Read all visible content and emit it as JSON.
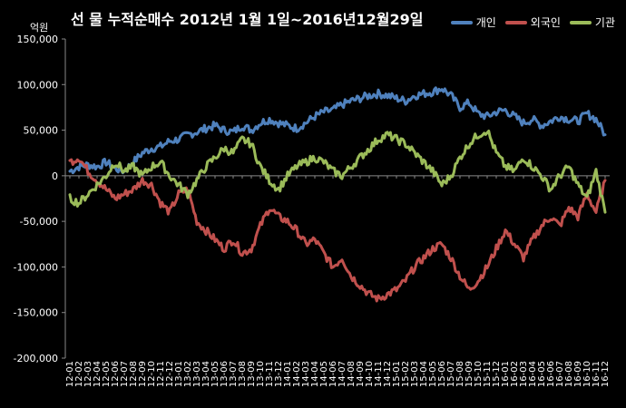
{
  "chart_data": {
    "type": "line",
    "title": "선 물 누적순매수 2012년 1월 1일~2016년12월29일",
    "unit_label": "억원",
    "ylim": [
      -200000,
      150000
    ],
    "yticks": [
      150000,
      100000,
      50000,
      0,
      -50000,
      -100000,
      -150000,
      -200000
    ],
    "ytick_labels": [
      "150,000",
      "100,000",
      "50,000",
      "0",
      "-50,000",
      "-100,000",
      "-150,000",
      "-200,000"
    ],
    "grid": false,
    "legend_position": "top-right",
    "x": [
      "12-01",
      "12-02",
      "12-03",
      "12-04",
      "12-05",
      "12-06",
      "12-07",
      "12-08",
      "12-09",
      "12-10",
      "12-11",
      "12-12",
      "13-01",
      "13-02",
      "13-03",
      "13-04",
      "13-05",
      "13-06",
      "13-07",
      "13-08",
      "13-09",
      "13-10",
      "13-11",
      "13-12",
      "14-01",
      "14-02",
      "14-03",
      "14-04",
      "14-05",
      "14-06",
      "14-07",
      "14-08",
      "14-09",
      "14-10",
      "14-11",
      "14-12",
      "15-01",
      "15-02",
      "15-03",
      "15-04",
      "15-05",
      "15-06",
      "15-07",
      "15-08",
      "15-09",
      "15-10",
      "15-11",
      "15-12",
      "16-01",
      "16-02",
      "16-03",
      "16-04",
      "16-05",
      "16-06",
      "16-07",
      "16-08",
      "16-09",
      "16-10",
      "16-11",
      "16-12"
    ],
    "series": [
      {
        "name": "개인",
        "color": "#4F81BD",
        "values": [
          5000,
          10000,
          12000,
          10000,
          15000,
          8000,
          5000,
          15000,
          25000,
          30000,
          32000,
          38000,
          40000,
          45000,
          48000,
          52000,
          55000,
          50000,
          48000,
          55000,
          50000,
          58000,
          62000,
          58000,
          55000,
          52000,
          58000,
          65000,
          70000,
          72000,
          78000,
          82000,
          85000,
          88000,
          90000,
          88000,
          85000,
          82000,
          88000,
          90000,
          92000,
          96000,
          88000,
          75000,
          80000,
          68000,
          65000,
          70000,
          72000,
          65000,
          58000,
          62000,
          55000,
          60000,
          65000,
          62000,
          60000,
          68000,
          62000,
          45000
        ]
      },
      {
        "name": "외국인",
        "color": "#C0504D",
        "values": [
          15000,
          20000,
          5000,
          -5000,
          -15000,
          -25000,
          -20000,
          -15000,
          -5000,
          -10000,
          -30000,
          -40000,
          -20000,
          -15000,
          -50000,
          -60000,
          -70000,
          -80000,
          -70000,
          -85000,
          -80000,
          -55000,
          -35000,
          -45000,
          -50000,
          -60000,
          -75000,
          -70000,
          -85000,
          -100000,
          -90000,
          -110000,
          -120000,
          -130000,
          -135000,
          -130000,
          -125000,
          -115000,
          -100000,
          -90000,
          -80000,
          -75000,
          -90000,
          -110000,
          -125000,
          -115000,
          -100000,
          -80000,
          -60000,
          -75000,
          -90000,
          -70000,
          -55000,
          -45000,
          -55000,
          -35000,
          -45000,
          -20000,
          -40000,
          -5000
        ]
      },
      {
        "name": "기관",
        "color": "#9BBB59",
        "values": [
          -25000,
          -30000,
          -20000,
          -10000,
          0,
          15000,
          5000,
          10000,
          0,
          10000,
          15000,
          0,
          -10000,
          -20000,
          -5000,
          10000,
          20000,
          30000,
          25000,
          40000,
          35000,
          10000,
          -5000,
          -15000,
          0,
          10000,
          15000,
          20000,
          15000,
          5000,
          0,
          10000,
          20000,
          30000,
          40000,
          45000,
          40000,
          35000,
          25000,
          15000,
          5000,
          -10000,
          0,
          20000,
          35000,
          45000,
          50000,
          25000,
          10000,
          5000,
          20000,
          10000,
          0,
          -15000,
          0,
          10000,
          -10000,
          -25000,
          5000,
          -40000
        ]
      }
    ]
  }
}
